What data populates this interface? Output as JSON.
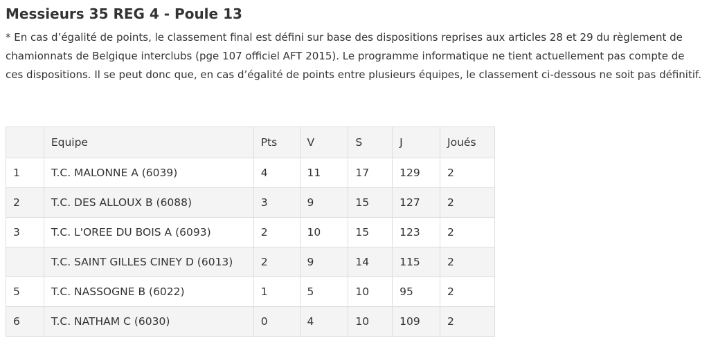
{
  "title": "Messieurs 35 REG 4 - Poule 13",
  "note": "* En cas d’égalité de points, le classement final est défini sur base des dispositions reprises aux articles 28 et 29 du règlement de chamionnats de Belgique interclubs (pge 107 officiel AFT 2015). Le programme informatique ne tient actuellement pas compte de ces dispositions. Il se peut donc que, en cas d’égalité de points entre plusieurs équipes, le classement ci-dessous ne soit pas définitif.",
  "table": {
    "headers": {
      "rank": "",
      "team": "Equipe",
      "pts": "Pts",
      "v": "V",
      "s": "S",
      "j": "J",
      "played": "Joués"
    },
    "rows": [
      {
        "rank": "1",
        "team": "T.C. MALONNE A (6039)",
        "pts": "4",
        "v": "11",
        "s": "17",
        "j": "129",
        "played": "2"
      },
      {
        "rank": "2",
        "team": "T.C. DES ALLOUX B (6088)",
        "pts": "3",
        "v": "9",
        "s": "15",
        "j": "127",
        "played": "2"
      },
      {
        "rank": "3",
        "team": "T.C. L'OREE DU BOIS A (6093)",
        "pts": "2",
        "v": "10",
        "s": "15",
        "j": "123",
        "played": "2"
      },
      {
        "rank": "",
        "team": "T.C. SAINT GILLES CINEY D (6013)",
        "pts": "2",
        "v": "9",
        "s": "14",
        "j": "115",
        "played": "2"
      },
      {
        "rank": "5",
        "team": "T.C. NASSOGNE B (6022)",
        "pts": "1",
        "v": "5",
        "s": "10",
        "j": "95",
        "played": "2"
      },
      {
        "rank": "6",
        "team": "T.C. NATHAM C (6030)",
        "pts": "0",
        "v": "4",
        "s": "10",
        "j": "109",
        "played": "2"
      }
    ]
  }
}
